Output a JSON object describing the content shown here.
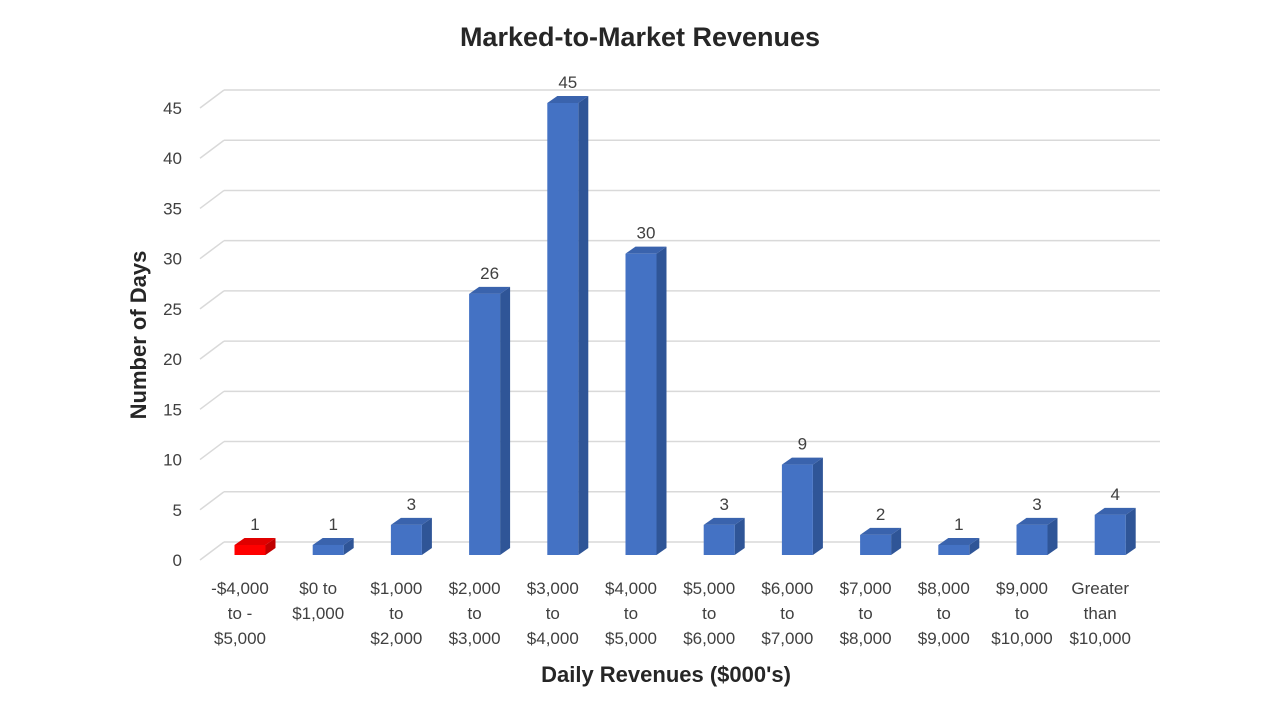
{
  "chart_data": {
    "type": "bar",
    "title": "Marked-to-Market Revenues",
    "xlabel": "Daily Revenues ($000's)",
    "ylabel": "Number of Days",
    "categories": [
      [
        "-$4,000",
        "to -",
        "$5,000"
      ],
      [
        "$0 to",
        "$1,000"
      ],
      [
        "$1,000",
        "to",
        "$2,000"
      ],
      [
        "$2,000",
        "to",
        "$3,000"
      ],
      [
        "$3,000",
        "to",
        "$4,000"
      ],
      [
        "$4,000",
        "to",
        "$5,000"
      ],
      [
        "$5,000",
        "to",
        "$6,000"
      ],
      [
        "$6,000",
        "to",
        "$7,000"
      ],
      [
        "$7,000",
        "to",
        "$8,000"
      ],
      [
        "$8,000",
        "to",
        "$9,000"
      ],
      [
        "$9,000",
        "to",
        "$10,000"
      ],
      [
        "Greater",
        "than",
        "$10,000"
      ]
    ],
    "values": [
      1,
      1,
      3,
      26,
      45,
      30,
      3,
      9,
      2,
      1,
      3,
      4
    ],
    "ylim": [
      0,
      45
    ],
    "yticks": [
      0,
      5,
      10,
      15,
      20,
      25,
      30,
      35,
      40,
      45
    ],
    "grid": true,
    "data_labels": true,
    "style": "3d-column",
    "colors": {
      "bar": "#4472c4",
      "bar_side": "#2f5597",
      "bar_top": "#3a63ad",
      "highlight_bar": "#ff0000",
      "highlight_side": "#c00000",
      "highlight_top": "#e00000",
      "highlight_index": 0,
      "grid": "#d9d9d9"
    }
  }
}
